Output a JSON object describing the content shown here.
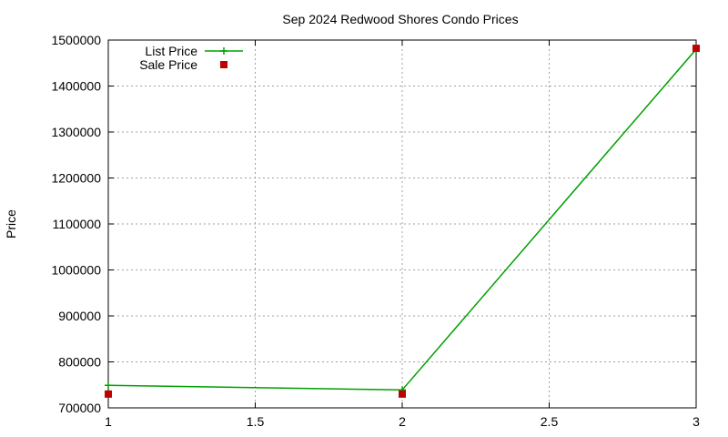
{
  "chart_data": {
    "type": "line",
    "title": "Sep 2024 Redwood Shores Condo Prices",
    "xlabel": "",
    "ylabel": "Price",
    "xlim": [
      1,
      3
    ],
    "ylim": [
      700000,
      1500000
    ],
    "x_ticks": [
      "1",
      "1.5",
      "2",
      "2.5",
      "3"
    ],
    "y_ticks": [
      "700000",
      "800000",
      "900000",
      "1000000",
      "1100000",
      "1200000",
      "1300000",
      "1400000",
      "1500000"
    ],
    "grid": true,
    "legend_position": "top-left",
    "series": [
      {
        "name": "List Price",
        "style": "line-points",
        "color": "#00a000",
        "points": [
          [
            1,
            749000
          ],
          [
            2,
            739000
          ],
          [
            3,
            1480000
          ]
        ]
      },
      {
        "name": "Sale Price",
        "style": "points",
        "color": "#c00000",
        "points": [
          [
            1,
            730000
          ],
          [
            2,
            730000
          ],
          [
            3,
            1482000
          ]
        ]
      }
    ]
  }
}
